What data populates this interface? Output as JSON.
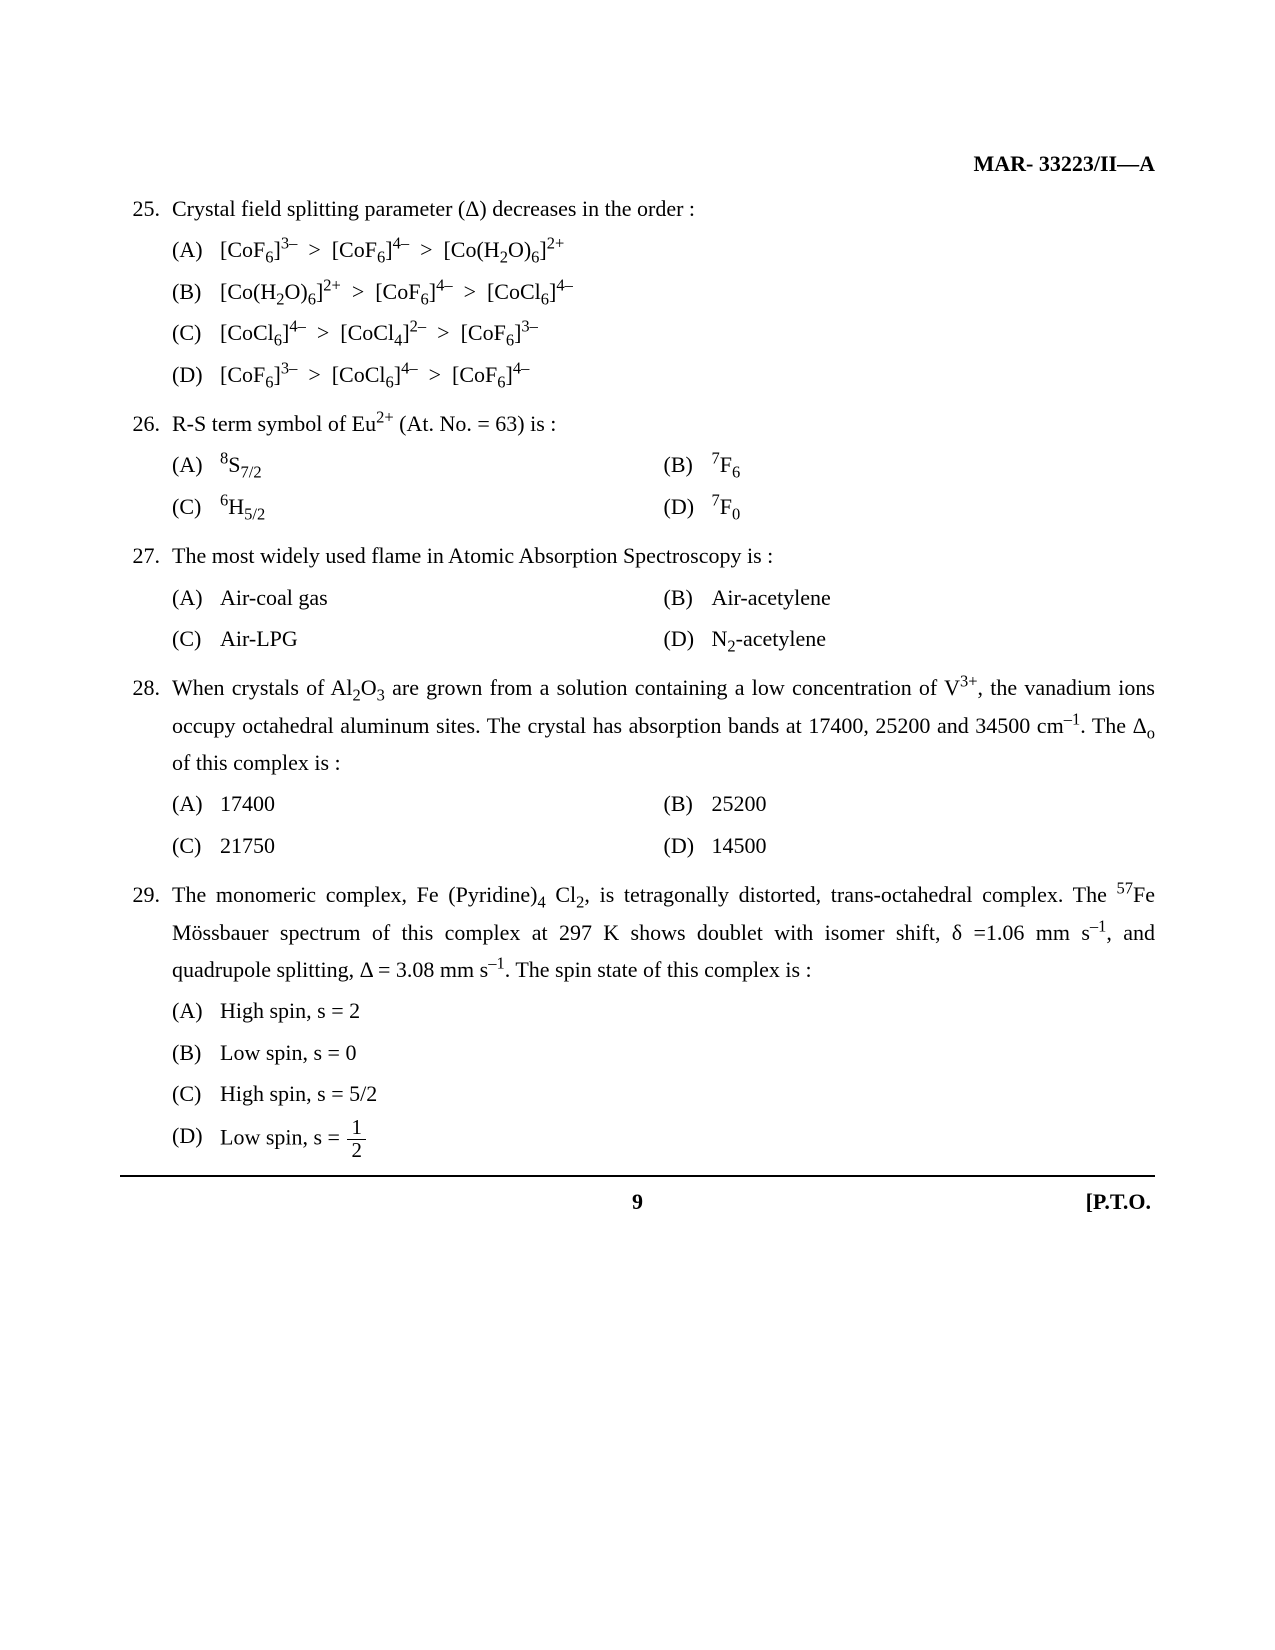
{
  "header": {
    "code": "MAR- 33223/II—A"
  },
  "footer": {
    "page_number": "9",
    "pto": "[P.T.O."
  },
  "questions": [
    {
      "number": "25.",
      "text_html": "Crystal field splitting parameter (Δ) decreases in the order :",
      "layout": "1col",
      "options": [
        {
          "label": "(A)",
          "html": "[CoF<sub>6</sub>]<sup>3–</sup> &nbsp;>&nbsp; [CoF<sub>6</sub>]<sup>4–</sup> &nbsp;>&nbsp; [Co(H<sub>2</sub>O)<sub>6</sub>]<sup>2+</sup>"
        },
        {
          "label": "(B)",
          "html": "[Co(H<sub>2</sub>O)<sub>6</sub>]<sup>2+</sup> &nbsp;>&nbsp; [CoF<sub>6</sub>]<sup>4–</sup> &nbsp;>&nbsp; [CoCl<sub>6</sub>]<sup>4–</sup>"
        },
        {
          "label": "(C)",
          "html": "[CoCl<sub>6</sub>]<sup>4–</sup> &nbsp;>&nbsp; [CoCl<sub>4</sub>]<sup>2–</sup> &nbsp;>&nbsp; [CoF<sub>6</sub>]<sup>3–</sup>"
        },
        {
          "label": "(D)",
          "html": "[CoF<sub>6</sub>]<sup>3–</sup> &nbsp;>&nbsp; [CoCl<sub>6</sub>]<sup>4–</sup> &nbsp;>&nbsp; [CoF<sub>6</sub>]<sup>4–</sup>"
        }
      ]
    },
    {
      "number": "26.",
      "text_html": "R-S term symbol of Eu<sup>2+</sup> (At. No. = 63) is :",
      "layout": "2col",
      "options": [
        {
          "label": "(A)",
          "html": "<sup>8</sup>S<sub>7/2</sub>"
        },
        {
          "label": "(B)",
          "html": "<sup>7</sup>F<sub>6</sub>"
        },
        {
          "label": "(C)",
          "html": "<sup>6</sup>H<sub>5/2</sub>"
        },
        {
          "label": "(D)",
          "html": "<sup>7</sup>F<sub>0</sub>"
        }
      ]
    },
    {
      "number": "27.",
      "text_html": "The most widely used flame in Atomic Absorption Spectroscopy is :",
      "layout": "2col",
      "options": [
        {
          "label": "(A)",
          "html": "Air-coal gas"
        },
        {
          "label": "(B)",
          "html": "Air-acetylene"
        },
        {
          "label": "(C)",
          "html": "Air-LPG"
        },
        {
          "label": "(D)",
          "html": "N<sub>2</sub>-acetylene"
        }
      ]
    },
    {
      "number": "28.",
      "text_html": "When crystals of Al<sub>2</sub>O<sub>3</sub> are grown from a solution containing a low concentration of V<sup>3+</sup>, the vanadium ions occupy octahedral aluminum sites. The crystal has absorption bands at 17400, 25200 and 34500 cm<sup>–1</sup>. The Δ<sub>o</sub> of this complex is :",
      "layout": "2col",
      "options": [
        {
          "label": "(A)",
          "html": "17400"
        },
        {
          "label": "(B)",
          "html": "25200"
        },
        {
          "label": "(C)",
          "html": "21750"
        },
        {
          "label": "(D)",
          "html": "14500"
        }
      ]
    },
    {
      "number": "29.",
      "text_html": "The monomeric complex, Fe (Pyridine)<sub>4</sub> Cl<sub>2</sub>, is tetragonally distorted, trans-octahedral complex. The <sup>57</sup>Fe Mössbauer spectrum of this complex at 297 K shows doublet with isomer shift, δ =1.06 mm s<sup>–1</sup>, and quadrupole splitting, Δ = 3.08 mm s<sup>–1</sup>. The spin state of this complex is :",
      "layout": "1col",
      "options": [
        {
          "label": "(A)",
          "html": "High spin, s = 2"
        },
        {
          "label": "(B)",
          "html": "Low spin, s = 0"
        },
        {
          "label": "(C)",
          "html": "High spin, s = 5/2"
        },
        {
          "label": "(D)",
          "html": "Low spin, s = <span class=\"frac\"><span class=\"num\">1</span><span class=\"den\">2</span></span>"
        }
      ]
    }
  ]
}
